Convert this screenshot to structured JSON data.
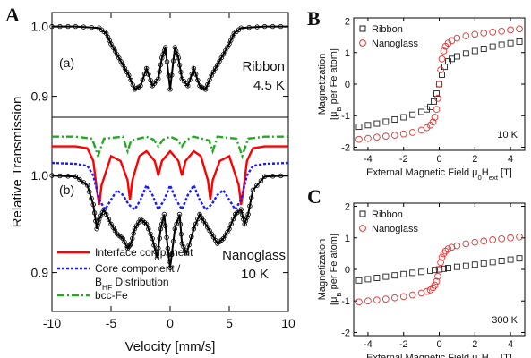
{
  "chart_data": [
    {
      "panel": "A",
      "type": "line",
      "xlabel": "Velocity [mm/s]",
      "ylabel": "Relative Transmission",
      "xlim": [
        -10,
        10
      ],
      "xticks": [
        "-10",
        "-5",
        "0",
        "5",
        "10"
      ],
      "subplots": [
        {
          "id": "a",
          "label": "(a)",
          "annotation": [
            "Ribbon",
            "4.5 K"
          ],
          "ylim": [
            0.87,
            1.02
          ],
          "yticks": [
            "0.9",
            "1.0"
          ],
          "series": [
            {
              "name": "Ribbon",
              "color": "#000000",
              "x": [
                -10,
                -8,
                -6,
                -5.4,
                -5,
                -4.5,
                -4,
                -3.5,
                -3,
                -2.5,
                -2,
                -1.5,
                -1,
                -0.7,
                -0.4,
                0,
                0.4,
                0.7,
                1,
                1.5,
                2,
                2.5,
                3,
                3.5,
                4,
                4.5,
                5,
                5.4,
                6,
                8,
                10
              ],
              "y": [
                1.0,
                1.0,
                0.998,
                0.99,
                0.975,
                0.96,
                0.945,
                0.93,
                0.91,
                0.915,
                0.94,
                0.915,
                0.925,
                0.955,
                0.97,
                0.91,
                0.97,
                0.955,
                0.925,
                0.915,
                0.94,
                0.915,
                0.91,
                0.93,
                0.945,
                0.96,
                0.975,
                0.99,
                0.998,
                1.0,
                1.0
              ]
            }
          ]
        },
        {
          "id": "b",
          "label": "(b)",
          "annotation": [
            "Nanoglass",
            "10 K"
          ],
          "ylim": [
            0.86,
            1.06
          ],
          "yticks": [
            "0.9",
            "1.0"
          ],
          "series": [
            {
              "name": "Nanoglass data",
              "color": "#000000",
              "x": [
                -10,
                -8,
                -7,
                -6.5,
                -6.2,
                -6,
                -5.6,
                -5,
                -4.5,
                -4,
                -3.6,
                -3.3,
                -3,
                -2.5,
                -2,
                -1.5,
                -1.1,
                -0.8,
                -0.5,
                -0.2,
                0,
                0.4,
                0.8,
                1,
                1.4,
                2,
                2.5,
                3,
                3.5,
                4,
                4.5,
                5,
                5.5,
                6,
                6.3,
                6.6,
                7,
                8,
                10
              ],
              "y": [
                1.0,
                0.999,
                0.99,
                0.97,
                0.945,
                0.955,
                0.965,
                0.95,
                0.94,
                0.935,
                0.925,
                0.93,
                0.945,
                0.955,
                0.95,
                0.935,
                0.915,
                0.945,
                0.96,
                0.925,
                0.905,
                0.945,
                0.96,
                0.93,
                0.92,
                0.945,
                0.96,
                0.95,
                0.94,
                0.93,
                0.935,
                0.945,
                0.96,
                0.965,
                0.95,
                0.96,
                0.985,
                0.999,
                1.0
              ]
            },
            {
              "name": "Interface component",
              "color": "#ff0000",
              "x": [
                -10,
                -8,
                -7,
                -6.5,
                -6.2,
                -6,
                -5.8,
                -5,
                -4.2,
                -3.6,
                -3.4,
                -3.2,
                -2.6,
                -2,
                -1.3,
                -1,
                -0.7,
                0,
                0.7,
                1,
                1.3,
                2,
                2.6,
                3.2,
                3.4,
                3.6,
                4.2,
                5,
                5.8,
                6,
                6.2,
                6.5,
                7,
                8,
                10
              ],
              "y": [
                1.03,
                1.03,
                1.028,
                1.015,
                0.985,
                0.97,
                0.99,
                1.02,
                1.015,
                0.995,
                0.975,
                0.995,
                1.02,
                1.025,
                1.015,
                1.0,
                1.015,
                1.025,
                1.015,
                1.0,
                1.015,
                1.025,
                1.02,
                0.995,
                0.975,
                0.995,
                1.015,
                1.02,
                0.99,
                0.97,
                0.985,
                1.015,
                1.028,
                1.03,
                1.03
              ]
            },
            {
              "name": "Core component / B_HF Distribution",
              "color": "#1a1aff",
              "x": [
                -10,
                -8,
                -7,
                -6.5,
                -6,
                -5.5,
                -5,
                -4.5,
                -4,
                -3.5,
                -3,
                -2.5,
                -2,
                -1.5,
                -1,
                -0.5,
                0,
                0.5,
                1,
                1.5,
                2,
                2.5,
                3,
                3.5,
                4,
                4.5,
                5,
                5.5,
                6,
                6.5,
                7,
                8,
                10
              ],
              "y": [
                1.013,
                1.012,
                1.01,
                1.0,
                0.975,
                0.965,
                0.975,
                0.985,
                0.98,
                0.97,
                0.965,
                0.975,
                0.99,
                0.98,
                0.965,
                0.975,
                0.99,
                0.975,
                0.965,
                0.98,
                0.99,
                0.975,
                0.965,
                0.97,
                0.98,
                0.985,
                0.975,
                0.965,
                0.975,
                1.0,
                1.01,
                1.012,
                1.013
              ]
            },
            {
              "name": "bcc-Fe",
              "color": "#22aa22",
              "x": [
                -10,
                -8,
                -6.6,
                -6.1,
                -5.6,
                -4,
                -3.9,
                -3.6,
                -3.3,
                -2,
                -1.4,
                -1.0,
                -0.6,
                0,
                0.6,
                1.0,
                1.4,
                2,
                3.3,
                3.6,
                3.9,
                4,
                5.6,
                6.1,
                6.6,
                8,
                10
              ],
              "y": [
                1.04,
                1.04,
                1.038,
                1.02,
                1.038,
                1.04,
                1.036,
                1.025,
                1.036,
                1.04,
                1.037,
                1.03,
                1.037,
                1.04,
                1.037,
                1.03,
                1.037,
                1.04,
                1.036,
                1.025,
                1.036,
                1.04,
                1.038,
                1.02,
                1.038,
                1.04,
                1.04
              ]
            }
          ]
        }
      ],
      "legend": {
        "placement": "bottom-left",
        "entries": [
          {
            "label": "Interface component",
            "color": "#ff0000",
            "style": "solid"
          },
          {
            "label": "Core component /",
            "label2_main": "B",
            "label2_sub": "HF",
            "label2_rest": " Distribution",
            "color": "#1a1aff",
            "style": "dotted"
          },
          {
            "label": "bcc-Fe",
            "color": "#22aa22",
            "style": "dashdot"
          }
        ]
      }
    },
    {
      "panel": "B",
      "type": "scatter",
      "xlabel_main": "External Magnetic Field μ",
      "xlabel_sub": "0",
      "xlabel_main2": "H",
      "xlabel_sub2": "ext",
      "xlabel_rest": " [T]",
      "ylabel_line1": "Magnetization",
      "ylabel_line2_main": "[μ",
      "ylabel_line2_sub": "B",
      "ylabel_line2_rest": " per Fe atom]",
      "annotation": "10 K",
      "xlim": [
        -4.8,
        4.8
      ],
      "ylim": [
        -2.1,
        2.1
      ],
      "xticks": [
        "-4",
        "-2",
        "0",
        "2",
        "4"
      ],
      "yticks": [
        "-2",
        "-1",
        "0",
        "1",
        "2"
      ],
      "legend": {
        "placement": "top-left"
      },
      "series": [
        {
          "name": "Ribbon",
          "color": "#222222",
          "marker": "square",
          "x": [
            -4.5,
            -4,
            -3.5,
            -3,
            -2.5,
            -2,
            -1.5,
            -1,
            -0.7,
            -0.5,
            -0.3,
            -0.15,
            0,
            0.15,
            0.3,
            0.5,
            0.7,
            1,
            1.5,
            2,
            2.5,
            3,
            3.5,
            4,
            4.5
          ],
          "y": [
            -1.35,
            -1.3,
            -1.25,
            -1.19,
            -1.12,
            -1.05,
            -0.97,
            -0.88,
            -0.8,
            -0.72,
            -0.55,
            -0.3,
            0,
            0.3,
            0.55,
            0.72,
            0.8,
            0.88,
            0.97,
            1.05,
            1.12,
            1.19,
            1.25,
            1.3,
            1.35
          ]
        },
        {
          "name": "Nanoglass",
          "color": "#e83030",
          "marker": "circle",
          "x": [
            -4.5,
            -4,
            -3.5,
            -3,
            -2.5,
            -2,
            -1.5,
            -1,
            -0.7,
            -0.5,
            -0.35,
            -0.25,
            -0.15,
            -0.08,
            0,
            0.08,
            0.15,
            0.25,
            0.35,
            0.5,
            0.7,
            1,
            1.5,
            2,
            2.5,
            3,
            3.5,
            4,
            4.5
          ],
          "y": [
            -1.75,
            -1.72,
            -1.68,
            -1.65,
            -1.62,
            -1.58,
            -1.53,
            -1.46,
            -1.38,
            -1.3,
            -1.2,
            -1.05,
            -0.8,
            -0.45,
            0,
            0.45,
            0.8,
            1.05,
            1.2,
            1.3,
            1.38,
            1.46,
            1.53,
            1.58,
            1.62,
            1.65,
            1.68,
            1.72,
            1.75
          ]
        }
      ]
    },
    {
      "panel": "C",
      "type": "scatter",
      "xlabel_main": "External Magnetic Field μ",
      "xlabel_sub": "0",
      "xlabel_main2": "H",
      "xlabel_sub2": "ext",
      "xlabel_rest": " [T]",
      "ylabel_line1": "Magnetization",
      "ylabel_line2_main": "[μ",
      "ylabel_line2_sub": "B",
      "ylabel_line2_rest": " per Fe atom]",
      "annotation": "300 K",
      "xlim": [
        -4.8,
        4.8
      ],
      "ylim": [
        -2.1,
        2.1
      ],
      "xticks": [
        "-4",
        "-2",
        "0",
        "2",
        "4"
      ],
      "yticks": [
        "-2",
        "-1",
        "0",
        "1",
        "2"
      ],
      "legend": {
        "placement": "top-left"
      },
      "series": [
        {
          "name": "Ribbon",
          "color": "#222222",
          "marker": "square",
          "x": [
            -4.5,
            -4,
            -3.5,
            -3,
            -2.5,
            -2,
            -1.5,
            -1,
            -0.5,
            -0.25,
            0,
            0.25,
            0.5,
            1,
            1.5,
            2,
            2.5,
            3,
            3.5,
            4,
            4.5
          ],
          "y": [
            -0.35,
            -0.31,
            -0.27,
            -0.23,
            -0.19,
            -0.15,
            -0.11,
            -0.08,
            -0.04,
            -0.02,
            0,
            0.02,
            0.04,
            0.08,
            0.11,
            0.15,
            0.19,
            0.23,
            0.27,
            0.31,
            0.35
          ]
        },
        {
          "name": "Nanoglass",
          "color": "#e83030",
          "marker": "circle",
          "x": [
            -4.5,
            -4,
            -3.5,
            -3,
            -2.5,
            -2,
            -1.5,
            -1,
            -0.7,
            -0.5,
            -0.35,
            -0.25,
            -0.15,
            -0.08,
            0,
            0.08,
            0.15,
            0.25,
            0.35,
            0.5,
            0.7,
            1,
            1.5,
            2,
            2.5,
            3,
            3.5,
            4,
            4.5
          ],
          "y": [
            -1.03,
            -1.0,
            -0.97,
            -0.94,
            -0.9,
            -0.86,
            -0.81,
            -0.75,
            -0.7,
            -0.65,
            -0.58,
            -0.5,
            -0.38,
            -0.22,
            0,
            0.22,
            0.38,
            0.5,
            0.58,
            0.65,
            0.7,
            0.75,
            0.81,
            0.86,
            0.9,
            0.94,
            0.97,
            1.0,
            1.03
          ]
        }
      ]
    }
  ]
}
